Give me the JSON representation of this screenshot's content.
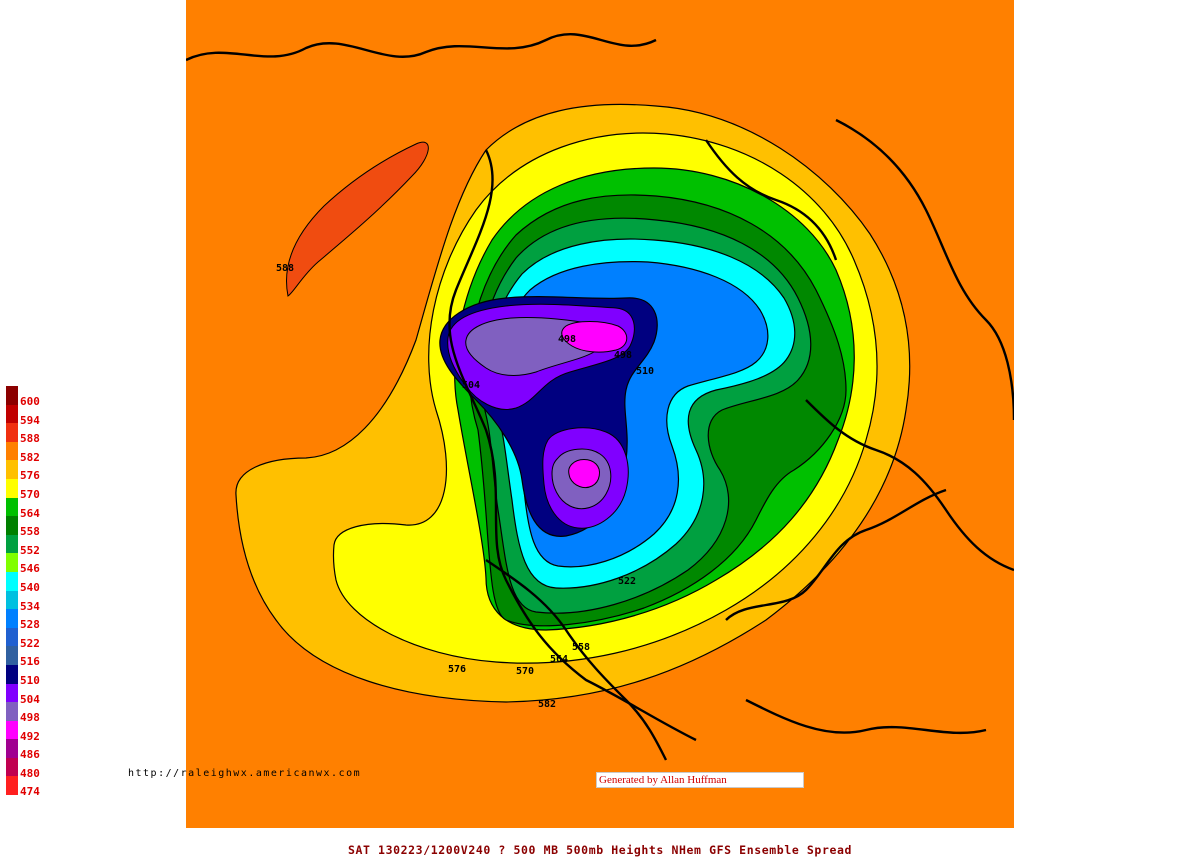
{
  "map": {
    "projection": "north-polar-stereographic",
    "background_color": "#ff8000",
    "coastline_color": "#000000",
    "contour_labels": [
      {
        "value": "588",
        "region": "north-pacific-ridge"
      },
      {
        "value": "498",
        "region": "siberia-low"
      },
      {
        "value": "498",
        "region": "siberia-low-inner"
      },
      {
        "value": "504",
        "region": "east-siberia"
      },
      {
        "value": "510",
        "region": "siberia-edge"
      },
      {
        "value": "522",
        "region": "hudson-bay"
      },
      {
        "value": "576",
        "region": "east-pacific"
      },
      {
        "value": "570",
        "region": "western-us"
      },
      {
        "value": "564",
        "region": "central-us"
      },
      {
        "value": "558",
        "region": "great-lakes"
      },
      {
        "value": "582",
        "region": "mexico"
      }
    ]
  },
  "legend": {
    "items": [
      {
        "label": "600",
        "color": "#8b0000"
      },
      {
        "label": "594",
        "color": "#c00000"
      },
      {
        "label": "588",
        "color": "#f03010"
      },
      {
        "label": "582",
        "color": "#ff8000"
      },
      {
        "label": "576",
        "color": "#ffc000"
      },
      {
        "label": "570",
        "color": "#ffff00"
      },
      {
        "label": "564",
        "color": "#00c000"
      },
      {
        "label": "558",
        "color": "#008000"
      },
      {
        "label": "552",
        "color": "#00a040"
      },
      {
        "label": "546",
        "color": "#80ff00"
      },
      {
        "label": "540",
        "color": "#00ffff"
      },
      {
        "label": "534",
        "color": "#00c0e0"
      },
      {
        "label": "528",
        "color": "#0080ff"
      },
      {
        "label": "522",
        "color": "#2060d0"
      },
      {
        "label": "516",
        "color": "#3060a0"
      },
      {
        "label": "510",
        "color": "#000080"
      },
      {
        "label": "504",
        "color": "#8000ff"
      },
      {
        "label": "498",
        "color": "#8060c0"
      },
      {
        "label": "492",
        "color": "#ff00ff"
      },
      {
        "label": "486",
        "color": "#a00090"
      },
      {
        "label": "480",
        "color": "#c00050"
      },
      {
        "label": "474",
        "color": "#ff2020"
      }
    ]
  },
  "footer": {
    "site_url": "http://raleighwx.americanwx.com",
    "credit": "Generated by Allan Huffman",
    "caption": "SAT 130223/1200V240  ? 500 MB 500mb Heights NHem GFS Ensemble Spread"
  }
}
